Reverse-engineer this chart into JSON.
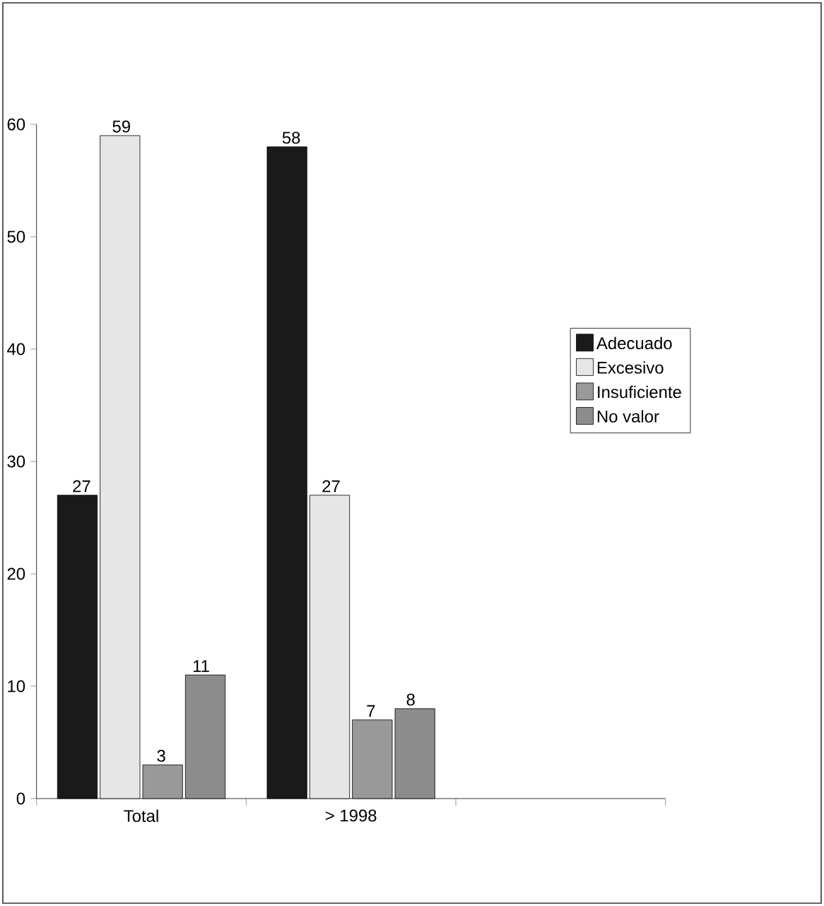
{
  "chart_data": {
    "type": "bar",
    "categories": [
      "Total",
      "> 1998",
      null
    ],
    "series": [
      {
        "name": "Adecuado",
        "color": "#1a1a1a",
        "values": [
          27,
          58,
          null
        ]
      },
      {
        "name": "Excesivo",
        "color": "#e6e6e6",
        "values": [
          59,
          27,
          null
        ]
      },
      {
        "name": "Insuficiente",
        "color": "#999999",
        "values": [
          3,
          7,
          null
        ]
      },
      {
        "name": "No valor",
        "color": "#8c8c8c",
        "type": "bar",
        "values": [
          11,
          8,
          null
        ]
      }
    ],
    "ylim": [
      0,
      60
    ],
    "yticks": [
      0,
      10,
      20,
      30,
      40,
      50,
      60
    ],
    "data_labels": true,
    "legend": "right",
    "grid": false
  }
}
